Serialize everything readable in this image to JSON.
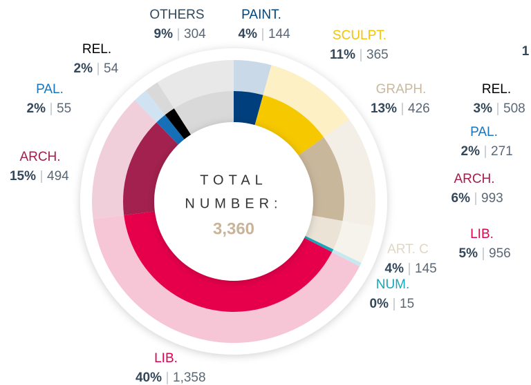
{
  "chart_data": {
    "type": "pie",
    "center_lines": [
      "TOTAL",
      "NUMBER:"
    ],
    "total": "3,360",
    "categories": [
      "PAINT.",
      "SCULPT.",
      "GRAPH.",
      "ART. C",
      "NUM.",
      "LIB.",
      "ARCH.",
      "PAL.",
      "REL.",
      "OTHERS"
    ],
    "values": [
      144,
      365,
      426,
      145,
      15,
      1358,
      494,
      55,
      54,
      304
    ],
    "value_labels": [
      "144",
      "365",
      "426",
      "145",
      "15",
      "1,358",
      "494",
      "55",
      "54",
      "304"
    ],
    "percent_labels": [
      "4%",
      "11%",
      "13%",
      "4%",
      "0%",
      "40%",
      "15%",
      "2%",
      "2%",
      "9%"
    ],
    "colors": [
      "#003f7d",
      "#f6c800",
      "#c9b79c",
      "#ebe3d6",
      "#1aa5b8",
      "#e6004c",
      "#a3214e",
      "#1670b8",
      "#000000",
      "#d9d9d9"
    ],
    "light_colors": [
      "#c9d9e8",
      "#fdf0c4",
      "#f3eee6",
      "#f6f2ec",
      "#c6e9ef",
      "#f7c6d6",
      "#f0cfdb",
      "#cfe3f3",
      "#d9d9d9",
      "#e8e8e8"
    ],
    "label_colors": [
      "#00457c",
      "#f5c400",
      "#c8b8a0",
      "#e0d6c8",
      "#1aa5b8",
      "#e0004d",
      "#a0204a",
      "#1a75b8",
      "#000000",
      "#33475b"
    ]
  },
  "side_chart": {
    "cut_text": "1",
    "categories": [
      "REL.",
      "PAL.",
      "ARCH.",
      "LIB."
    ],
    "percent_labels": [
      "3%",
      "2%",
      "6%",
      "5%"
    ],
    "value_labels": [
      "508",
      "271",
      "993",
      "956"
    ],
    "label_colors": [
      "#000000",
      "#1a75b8",
      "#a0204a",
      "#e0004d"
    ]
  }
}
